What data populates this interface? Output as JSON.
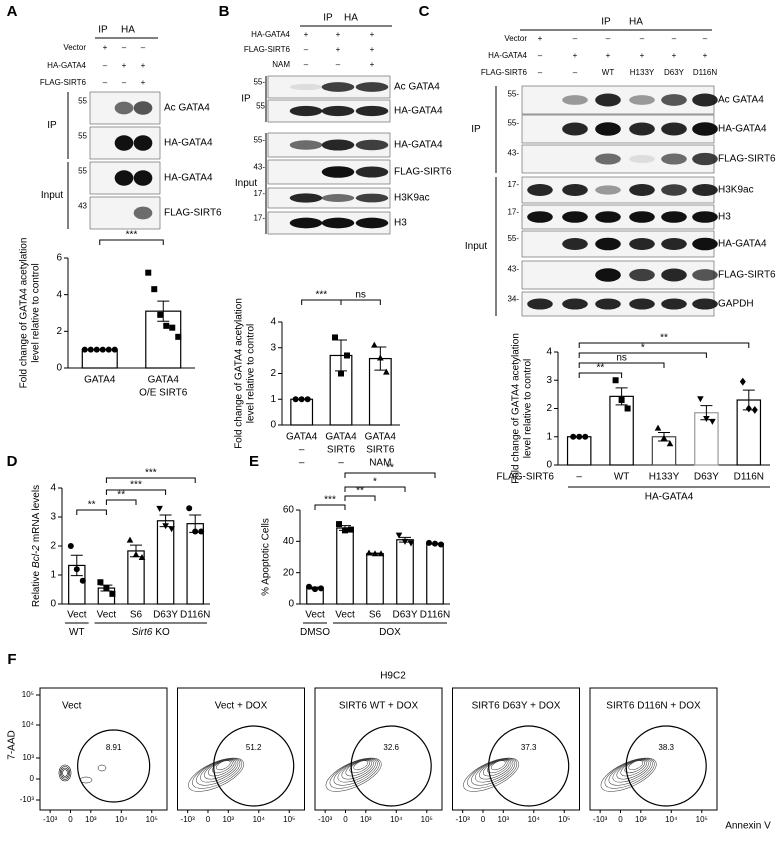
{
  "panels": {
    "A": {
      "label": "A",
      "header": [
        "IP",
        "HA"
      ],
      "conditions": [
        {
          "name": "Vector",
          "lanes": [
            "+",
            "–",
            "–"
          ]
        },
        {
          "name": "HA-GATA4",
          "lanes": [
            "–",
            "+",
            "+"
          ]
        },
        {
          "name": "FLAG-SIRT6",
          "lanes": [
            "–",
            "–",
            "+"
          ]
        }
      ],
      "blot_groups": [
        {
          "name": "IP",
          "blots": [
            {
              "marker": "55",
              "name": "Ac GATA4"
            },
            {
              "marker": "55",
              "name": "HA-GATA4"
            }
          ]
        },
        {
          "name": "Input",
          "blots": [
            {
              "marker": "55",
              "name": "HA-GATA4"
            },
            {
              "marker": "43",
              "name": "FLAG-SIRT6"
            }
          ]
        }
      ]
    },
    "B": {
      "label": "B",
      "header": [
        "IP",
        "HA"
      ],
      "conditions": [
        {
          "name": "HA-GATA4",
          "lanes": [
            "+",
            "+",
            "+"
          ]
        },
        {
          "name": "FLAG-SIRT6",
          "lanes": [
            "–",
            "+",
            "+"
          ]
        },
        {
          "name": "NAM",
          "lanes": [
            "–",
            "–",
            "+"
          ]
        }
      ],
      "blot_groups": [
        {
          "name": "IP",
          "blots": [
            {
              "marker": "55-",
              "name": "Ac GATA4"
            },
            {
              "marker": "55",
              "name": "HA-GATA4"
            }
          ]
        },
        {
          "name": "Input",
          "blots": [
            {
              "marker": "55-",
              "name": "HA-GATA4"
            },
            {
              "marker": "43-",
              "name": "FLAG-SIRT6"
            },
            {
              "marker": "17-",
              "name": "H3K9ac"
            },
            {
              "marker": "17-",
              "name": "H3"
            }
          ]
        }
      ]
    },
    "C": {
      "label": "C",
      "header": [
        "IP",
        "HA"
      ],
      "conditions": [
        {
          "name": "Vector",
          "lanes": [
            "+",
            "–",
            "–",
            "–",
            "–",
            "–"
          ]
        },
        {
          "name": "HA-GATA4",
          "lanes": [
            "–",
            "+",
            "+",
            "+",
            "+",
            "+"
          ]
        },
        {
          "name": "FLAG-SIRT6",
          "lanes": [
            "–",
            "–",
            "WT",
            "H133Y",
            "D63Y",
            "D116N"
          ]
        }
      ],
      "blot_groups": [
        {
          "name": "IP",
          "blots": [
            {
              "marker": "55-",
              "name": "Ac GATA4"
            },
            {
              "marker": "55-",
              "name": "HA-GATA4"
            },
            {
              "marker": "43-",
              "name": "FLAG-SIRT6"
            }
          ]
        },
        {
          "name": "Input",
          "blots": [
            {
              "marker": "17-",
              "name": "H3K9ac"
            },
            {
              "marker": "17-",
              "name": "H3"
            },
            {
              "marker": "55-",
              "name": "HA-GATA4"
            },
            {
              "marker": "43-",
              "name": "FLAG-SIRT6"
            },
            {
              "marker": "34-",
              "name": "GAPDH"
            }
          ]
        }
      ]
    }
  },
  "chart_data": [
    {
      "type": "bar",
      "ylabel": [
        "Fold change of GATA4 acetylation",
        "level relative to control"
      ],
      "categories": [
        "GATA4",
        "GATA4"
      ],
      "sublabels": [
        [
          null,
          "O/E SIRT6"
        ]
      ],
      "values": [
        1,
        3.1
      ],
      "errors": [
        0,
        0.55
      ],
      "points": [
        [
          1,
          1,
          1,
          1,
          1,
          1
        ],
        [
          5.2,
          4.3,
          2.9,
          2.3,
          2.2,
          1.7
        ]
      ],
      "markers": [
        "circle",
        "square"
      ],
      "edge_colors": [
        "#000000",
        "#000000"
      ],
      "color": "#ffffff",
      "ylim": [
        0,
        6
      ],
      "yticks": [
        0,
        2,
        4,
        6
      ],
      "annotations": [
        "***"
      ]
    },
    {
      "type": "bar",
      "ylabel": [
        "Fold change of GATA4 acetylation",
        "level relative to control"
      ],
      "categories": [
        "GATA4",
        "GATA4",
        "GATA4"
      ],
      "sublabels": [
        [
          "–",
          "SIRT6",
          "SIRT6"
        ],
        [
          "–",
          "–",
          "NAM"
        ]
      ],
      "values": [
        1,
        2.7,
        2.58
      ],
      "errors": [
        0,
        0.6,
        0.45
      ],
      "points": [
        [
          1,
          1,
          1
        ],
        [
          3.4,
          2.0,
          2.7
        ],
        [
          3.1,
          2.6,
          2.05
        ]
      ],
      "markers": [
        "circle",
        "square",
        "triangle"
      ],
      "edge_colors": [
        "#000000",
        "#000000",
        "#000000"
      ],
      "color": "#ffffff",
      "ylim": [
        0,
        4
      ],
      "yticks": [
        0,
        1,
        2,
        3,
        4
      ],
      "annotations": [
        "***",
        "ns"
      ]
    },
    {
      "type": "bar",
      "ylabel": [
        "Fold change of GATA4 acetylation",
        "level relative to control"
      ],
      "categories": [
        "–",
        "WT",
        "H133Y",
        "D63Y",
        "D116N"
      ],
      "xlabel": "FLAG-SIRT6",
      "group_label": "HA-GATA4",
      "values": [
        1,
        2.43,
        1.0,
        1.85,
        2.3
      ],
      "errors": [
        0,
        0.3,
        0.15,
        0.25,
        0.35
      ],
      "points": [
        [
          1,
          1,
          1
        ],
        [
          3.0,
          2.3,
          2.0
        ],
        [
          1.3,
          0.95,
          0.75
        ],
        [
          2.35,
          1.65,
          1.55
        ],
        [
          2.95,
          2.0,
          1.95
        ]
      ],
      "markers": [
        "circle",
        "square",
        "triangle",
        "triangle-down",
        "diamond"
      ],
      "edge_colors": [
        "#000000",
        "#000000",
        "#444444",
        "#999999",
        "#000000"
      ],
      "color": "#ffffff",
      "ylim": [
        0,
        4
      ],
      "yticks": [
        0,
        1,
        2,
        3,
        4
      ],
      "annotations": [
        "**",
        "ns",
        "*",
        "**"
      ]
    },
    {
      "type": "bar",
      "panel_label": "D",
      "ylabel_parts": [
        "Relative",
        "Bcl-2",
        "mRNA levels"
      ],
      "categories": [
        "Vect",
        "Vect",
        "S6",
        "D63Y",
        "D116N"
      ],
      "groups": [
        [
          "WT"
        ],
        [
          "Sirt6",
          "KO"
        ]
      ],
      "values": [
        1.33,
        0.55,
        1.83,
        2.87,
        2.77
      ],
      "errors": [
        0.35,
        0.1,
        0.2,
        0.2,
        0.3
      ],
      "points": [
        [
          2.0,
          1.2,
          0.8
        ],
        [
          0.75,
          0.55,
          0.35
        ],
        [
          2.2,
          1.7,
          1.6
        ],
        [
          3.3,
          2.7,
          2.6
        ],
        [
          3.3,
          2.5,
          2.5
        ]
      ],
      "markers": [
        "circle",
        "square",
        "triangle",
        "triangle-down",
        "circle"
      ],
      "edge_colors": [
        "#000000",
        "#000000",
        "#000000",
        "#000000",
        "#000000"
      ],
      "color": "#ffffff",
      "ylim": [
        0,
        4
      ],
      "yticks": [
        0,
        1,
        2,
        3,
        4
      ],
      "annotations": [
        "**",
        "**",
        "***",
        "***"
      ]
    },
    {
      "type": "bar",
      "panel_label": "E",
      "ylabel": [
        "% Apoptotic Cells"
      ],
      "categories": [
        "Vect",
        "Vect",
        "S6",
        "D63Y",
        "D116N"
      ],
      "groups": [
        [
          "DMSO"
        ],
        [
          "DOX"
        ]
      ],
      "values": [
        10.2,
        48.5,
        32.2,
        41,
        38.5
      ],
      "errors": [
        0.6,
        1.5,
        0.3,
        1.5,
        0.3
      ],
      "points": [
        [
          11,
          9.5,
          10
        ],
        [
          51,
          47,
          47.5
        ],
        [
          32.5,
          32,
          32
        ],
        [
          44,
          40,
          39
        ],
        [
          39,
          38.5,
          38
        ]
      ],
      "markers": [
        "circle",
        "square",
        "triangle",
        "triangle-down",
        "circle"
      ],
      "edge_colors": [
        "#000000",
        "#000000",
        "#000000",
        "#000000",
        "#000000"
      ],
      "color": "#ffffff",
      "ylim": [
        0,
        60
      ],
      "yticks": [
        0,
        20,
        40,
        60
      ],
      "annotations": [
        "***",
        "**",
        "*",
        "**"
      ]
    }
  ],
  "flow": {
    "label": "F",
    "title": "H9C2",
    "ylabel": "7-AAD",
    "xlabel": "Annexin V",
    "yticks": [
      "10⁵",
      "10⁴",
      "10³",
      "0",
      "-10³"
    ],
    "xticks": [
      "-10³",
      "0",
      "10³",
      "10⁴",
      "10⁵"
    ],
    "plots": [
      {
        "name": "Vect",
        "value": "8.91"
      },
      {
        "name": "Vect  +  DOX",
        "value": "51.2"
      },
      {
        "name": "SIRT6 WT  +  DOX",
        "value": "32.6"
      },
      {
        "name": "SIRT6 D63Y  +  DOX",
        "value": "37.3"
      },
      {
        "name": "SIRT6 D116N +  DOX",
        "value": "38.3"
      }
    ]
  }
}
